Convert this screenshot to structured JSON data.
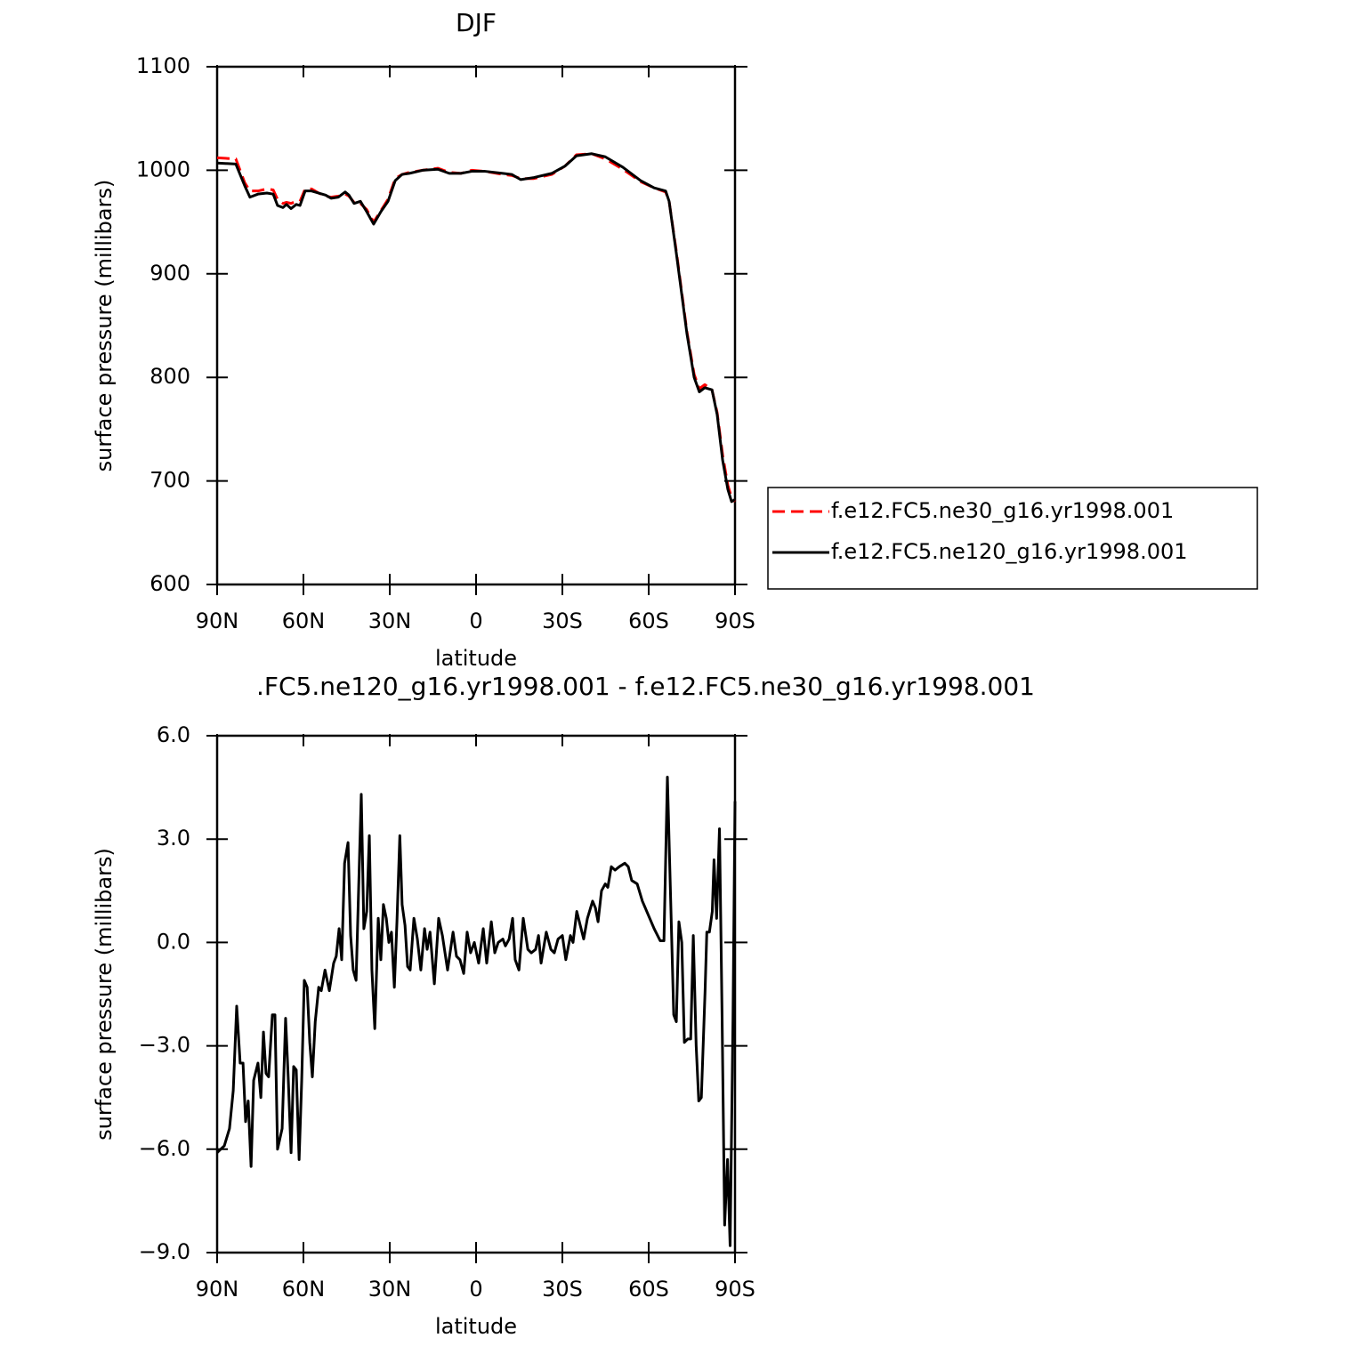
{
  "chart_data": [
    {
      "type": "line",
      "title": "DJF",
      "x_label": "latitude",
      "y_label": "surface pressure (millibars)",
      "xlim": [
        90,
        -90
      ],
      "xticks": [
        {
          "value": 90,
          "label": "90N"
        },
        {
          "value": 60,
          "label": "60N"
        },
        {
          "value": 30,
          "label": "30N"
        },
        0,
        {
          "value": -30,
          "label": "30S"
        },
        {
          "value": -60,
          "label": "60S"
        },
        {
          "value": -90,
          "label": "90S"
        }
      ],
      "ylim": [
        600,
        1100
      ],
      "yticks": [
        600,
        700,
        800,
        900,
        1000,
        1100
      ],
      "legend": "right",
      "x": [
        90,
        83.5,
        80.4,
        78.6,
        75.8,
        72.7,
        70.5,
        69,
        67.1,
        65.9,
        64.3,
        62.5,
        61.2,
        59.4,
        57.2,
        54.7,
        52.3,
        50.4,
        47.9,
        45.5,
        44.2,
        42.4,
        40.2,
        38,
        35.6,
        33.1,
        30.6,
        28.1,
        25.7,
        23.2,
        18.6,
        13.3,
        9.3,
        5.3,
        1.5,
        -3.1,
        -9.3,
        -12.4,
        -15.5,
        -20.1,
        -26.3,
        -30.9,
        -34.9,
        -40.2,
        -44.9,
        -51,
        -57.2,
        -61.9,
        -65.9,
        -67.1,
        -69.6,
        -71.5,
        -73.3,
        -75.8,
        -77.6,
        -79.5,
        -82,
        -83.8,
        -85.7,
        -87.5,
        -88.8,
        -90
      ],
      "series": [
        {
          "name": "f.e12.FC5.ne30_g16.yr1998.001",
          "color": "#ff0000",
          "line_style": "dashed",
          "values": [
            1012,
            1011,
            988,
            980,
            980,
            982,
            981,
            972,
            968,
            969,
            968,
            970,
            970,
            982,
            982,
            978,
            975,
            974,
            975,
            977,
            975,
            969,
            968,
            962,
            950,
            961,
            972,
            992,
            996,
            998,
            1000,
            1002,
            998,
            997,
            1000,
            999,
            996,
            995,
            992,
            992,
            996,
            1004,
            1015,
            1016,
            1011,
            1001,
            989,
            983,
            979,
            970,
            922,
            882,
            844,
            803,
            789,
            793,
            788,
            766,
            725,
            696,
            684,
            680
          ]
        },
        {
          "name": "f.e12.FC5.ne120_g16.yr1998.001",
          "color": "#000000",
          "line_style": "solid",
          "values": [
            1007,
            1006,
            985,
            974,
            977,
            978,
            977,
            966,
            964,
            967,
            963,
            967,
            966,
            980,
            980,
            978,
            976,
            973,
            974,
            979,
            976,
            968,
            970,
            960,
            948,
            960,
            970,
            990,
            996,
            997,
            1000,
            1001,
            997,
            997,
            999,
            999,
            997,
            996,
            991,
            993,
            997,
            1004,
            1014,
            1016,
            1013,
            1003,
            990,
            983,
            980,
            970,
            920,
            880,
            842,
            800,
            786,
            790,
            788,
            764,
            720,
            692,
            680,
            682
          ]
        }
      ]
    },
    {
      "type": "line",
      "title": ".FC5.ne120_g16.yr1998.001 - f.e12.FC5.ne30_g16.yr1998.001",
      "x_label": "latitude",
      "y_label": "surface pressure (millibars)",
      "xlim": [
        90,
        -90
      ],
      "xticks": [
        {
          "value": 90,
          "label": "90N"
        },
        {
          "value": 60,
          "label": "60N"
        },
        {
          "value": 30,
          "label": "30N"
        },
        0,
        {
          "value": -30,
          "label": "30S"
        },
        {
          "value": -60,
          "label": "60S"
        },
        {
          "value": -90,
          "label": "90S"
        }
      ],
      "ylim": [
        -9,
        6
      ],
      "yticks": [
        {
          "value": -9,
          "label": "−9.0"
        },
        {
          "value": -6,
          "label": "−6.0"
        },
        {
          "value": -3,
          "label": "−3.0"
        },
        {
          "value": 0,
          "label": "0.0"
        },
        {
          "value": 3,
          "label": "3.0"
        },
        {
          "value": 6,
          "label": "6.0"
        }
      ],
      "x": [
        90,
        87.5,
        85.7,
        84.4,
        83.2,
        82,
        81,
        80.1,
        79.2,
        78.2,
        77.3,
        75.8,
        74.8,
        73.9,
        73,
        72.1,
        70.8,
        69.9,
        69,
        67.4,
        66.2,
        65.3,
        64.3,
        63.4,
        62.5,
        61.5,
        60.6,
        59.7,
        58.7,
        57.8,
        56.9,
        55.9,
        54.7,
        53.8,
        52.5,
        51,
        49.5,
        48.6,
        47.6,
        46.7,
        45.7,
        44.5,
        43.6,
        42.7,
        41.7,
        39.9,
        39,
        38,
        37.1,
        36.2,
        35.2,
        34,
        33.1,
        32.2,
        31.2,
        30.3,
        29.4,
        28.4,
        27.5,
        26.5,
        25.7,
        24.7,
        23.8,
        22.9,
        21.6,
        20.4,
        19.2,
        17.9,
        17,
        16,
        14.5,
        13,
        11.7,
        9.9,
        8,
        6.8,
        5.6,
        4.3,
        3.1,
        1.9,
        0.6,
        -0.9,
        -2.5,
        -3.7,
        -5.3,
        -6.5,
        -7.7,
        -9.3,
        -10.2,
        -11.5,
        -12.7,
        -13.6,
        -14.9,
        -16.4,
        -18,
        -19.2,
        -20.7,
        -21.7,
        -22.6,
        -24.4,
        -26,
        -27.2,
        -28.5,
        -30,
        -31.2,
        -32.8,
        -33.7,
        -35,
        -36.2,
        -37.4,
        -38.7,
        -40.5,
        -41.5,
        -42.4,
        -43.6,
        -44.9,
        -45.8,
        -47,
        -48.3,
        -49.8,
        -51.7,
        -52.9,
        -54.1,
        -56,
        -57.8,
        -61.9,
        -64,
        -65.3,
        -66.5,
        -68.7,
        -69.6,
        -70.5,
        -71.5,
        -72.4,
        -73.6,
        -74.6,
        -75.5,
        -76.5,
        -77.4,
        -78.3,
        -79.6,
        -80.2,
        -81.1,
        -82.1,
        -82.7,
        -83.6,
        -84.6,
        -85.5,
        -86.4,
        -87.4,
        -88.3,
        -89.3,
        -90
      ],
      "series": [
        {
          "color": "#000000",
          "line_style": "solid",
          "values": [
            -6.1,
            -5.9,
            -5.4,
            -4.3,
            -1.85,
            -3.5,
            -3.5,
            -5.2,
            -4.6,
            -6.5,
            -4,
            -3.5,
            -4.5,
            -2.6,
            -3.8,
            -3.9,
            -2.1,
            -2.1,
            -6,
            -5.4,
            -2.2,
            -3.9,
            -6.1,
            -3.6,
            -3.7,
            -6.3,
            -4,
            -1.1,
            -1.3,
            -2.9,
            -3.9,
            -2.3,
            -1.3,
            -1.4,
            -0.8,
            -1.4,
            -0.6,
            -0.4,
            0.4,
            -0.5,
            2.3,
            2.9,
            0.2,
            -0.8,
            -1.1,
            4.3,
            0.4,
            0.9,
            3.1,
            -0.8,
            -2.5,
            0.7,
            -0.5,
            1.1,
            0.7,
            0,
            0.3,
            -1.3,
            0.6,
            3.1,
            1.1,
            0.5,
            -0.7,
            -0.8,
            0.7,
            0.1,
            -0.8,
            0.4,
            -0.2,
            0.3,
            -1.2,
            0.7,
            0.2,
            -0.8,
            0.3,
            -0.4,
            -0.5,
            -0.9,
            0.3,
            -0.3,
            0,
            -0.6,
            0.4,
            -0.6,
            0.6,
            -0.3,
            0,
            0.1,
            -0.1,
            0.1,
            0.7,
            -0.5,
            -0.8,
            0.7,
            -0.2,
            -0.3,
            -0.2,
            0.2,
            -0.6,
            0.3,
            -0.2,
            -0.3,
            0.1,
            0.2,
            -0.5,
            0.2,
            0,
            0.9,
            0.5,
            0.1,
            0.7,
            1.2,
            1,
            0.6,
            1.5,
            1.7,
            1.6,
            2.2,
            2.1,
            2.2,
            2.3,
            2.2,
            1.8,
            1.7,
            1.2,
            0.4,
            0.05,
            0.05,
            4.8,
            -2.1,
            -2.3,
            0.6,
            0,
            -2.9,
            -2.8,
            -2.8,
            0.2,
            -3,
            -4.6,
            -4.5,
            -1.4,
            0.3,
            0.3,
            0.9,
            2.4,
            0.7,
            3.3,
            -2.1,
            -8.2,
            -6.3,
            -8.8,
            -2.2,
            4.1
          ]
        }
      ]
    }
  ]
}
